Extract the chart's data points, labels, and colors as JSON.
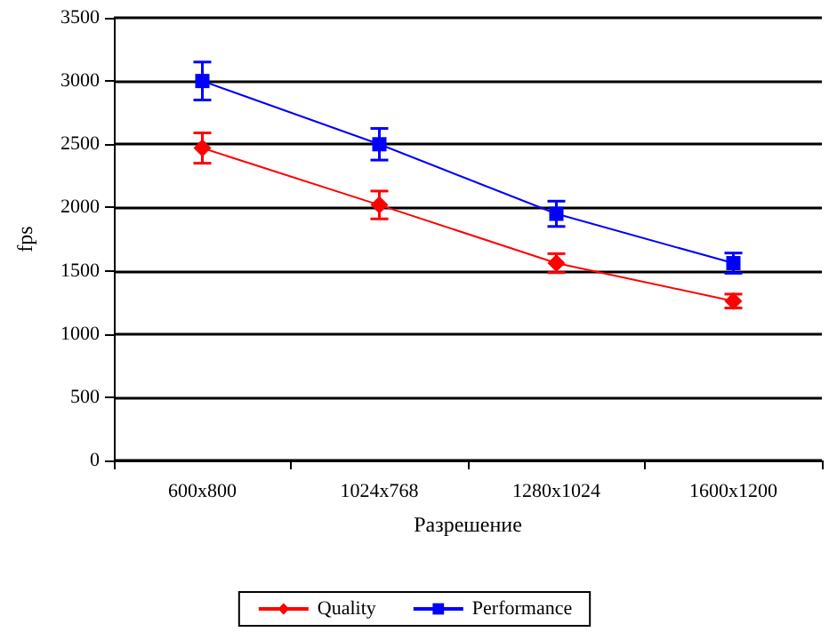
{
  "chart_data": {
    "type": "line",
    "xlabel": "Разрешение",
    "ylabel": "fps",
    "categories": [
      "600x800",
      "1024x768",
      "1280x1024",
      "1600x1200"
    ],
    "series": [
      {
        "name": "Quality",
        "color": "#ff0000",
        "marker": "diamond",
        "values": [
          2470,
          2020,
          1560,
          1260
        ],
        "errors": [
          120,
          110,
          75,
          55
        ]
      },
      {
        "name": "Performance",
        "color": "#0000ff",
        "marker": "square",
        "values": [
          3000,
          2500,
          1950,
          1560
        ],
        "errors": [
          150,
          125,
          100,
          80
        ]
      }
    ],
    "ylim": [
      0,
      3500
    ],
    "yticks": [
      0,
      500,
      1000,
      1500,
      2000,
      2500,
      3000,
      3500
    ],
    "grid": "y",
    "legend": "bottom"
  }
}
